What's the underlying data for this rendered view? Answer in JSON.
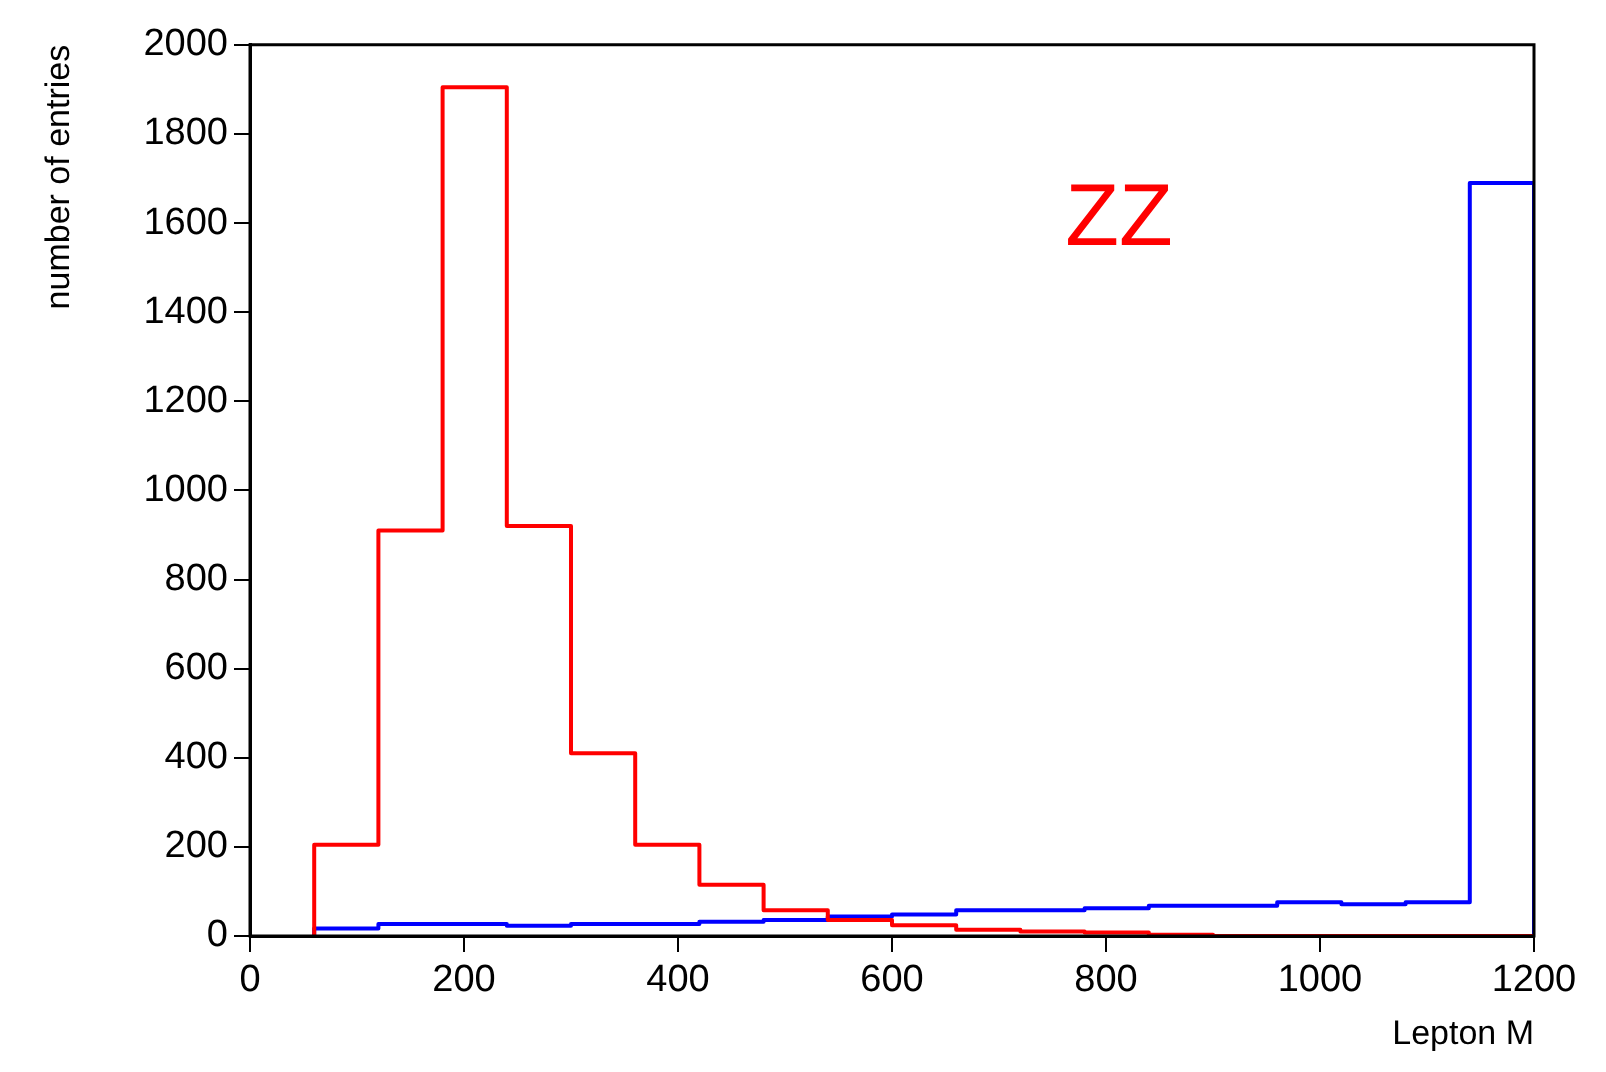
{
  "chart_data": {
    "type": "histogram",
    "xlabel": "Lepton M",
    "ylabel": "number of entries",
    "annotations": [
      "ZZ"
    ],
    "bins": [
      60,
      120,
      180,
      240,
      300,
      360,
      420,
      480,
      540,
      600,
      660,
      720,
      780,
      840,
      900,
      960,
      1020,
      1080,
      1140,
      1200
    ],
    "series": [
      {
        "color": "#ff0000",
        "values": [
          205,
          910,
          1905,
          920,
          410,
          205,
          115,
          58,
          36,
          24,
          14,
          10,
          8,
          3,
          0,
          0,
          0,
          0,
          0
        ]
      },
      {
        "color": "#0000ff",
        "values": [
          17,
          27,
          27,
          23,
          27,
          27,
          32,
          36,
          44,
          48,
          58,
          58,
          62,
          68,
          68,
          76,
          71,
          76,
          1690
        ]
      }
    ],
    "xlim": [
      0,
      1200
    ],
    "xticks": [
      0,
      200,
      400,
      600,
      800,
      1000,
      1200
    ],
    "ylim": [
      0,
      2000
    ],
    "yticks": [
      0,
      200,
      400,
      600,
      800,
      1000,
      1200,
      1400,
      1600,
      1800,
      2000
    ],
    "grid": false,
    "legend": false
  }
}
